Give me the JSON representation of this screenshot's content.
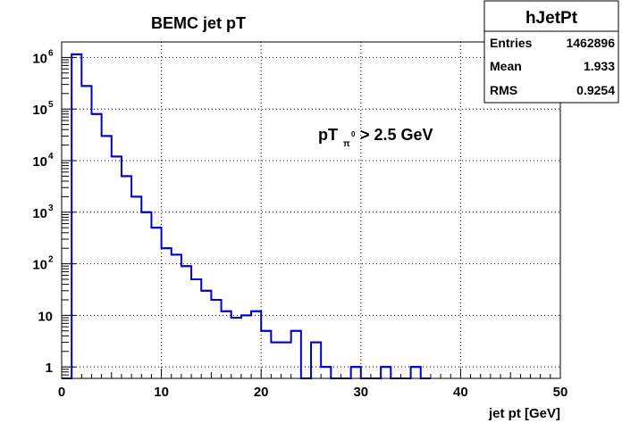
{
  "chart_data": {
    "type": "histogram",
    "title": "BEMC jet pT",
    "annotation": {
      "main": "pT",
      "subscript": "π",
      "superscript": "0",
      "rest": "> 2.5 GeV"
    },
    "xlabel": "jet pt [GeV]",
    "ylabel": "",
    "xlim": [
      0,
      50
    ],
    "ylim": [
      0.6,
      2000000
    ],
    "yscale": "log",
    "grid": true,
    "x_ticks": [
      0,
      10,
      20,
      30,
      40,
      50
    ],
    "x_tick_labels": [
      "0",
      "10",
      "20",
      "30",
      "40",
      "50"
    ],
    "y_ticks": [
      1,
      10,
      100,
      1000,
      10000,
      100000,
      1000000
    ],
    "y_tick_labels": [
      {
        "base": "1",
        "exp": ""
      },
      {
        "base": "10",
        "exp": ""
      },
      {
        "base": "10",
        "exp": "2"
      },
      {
        "base": "10",
        "exp": "3"
      },
      {
        "base": "10",
        "exp": "4"
      },
      {
        "base": "10",
        "exp": "5"
      },
      {
        "base": "10",
        "exp": "6"
      }
    ],
    "line_color": "#0000cc",
    "bin_width": 1,
    "bins": [
      {
        "x": 0,
        "y": 0
      },
      {
        "x": 1,
        "y": 1150000
      },
      {
        "x": 2,
        "y": 280000
      },
      {
        "x": 3,
        "y": 80000
      },
      {
        "x": 4,
        "y": 30000
      },
      {
        "x": 5,
        "y": 12000
      },
      {
        "x": 6,
        "y": 5000
      },
      {
        "x": 7,
        "y": 2000
      },
      {
        "x": 8,
        "y": 1000
      },
      {
        "x": 9,
        "y": 500
      },
      {
        "x": 10,
        "y": 200
      },
      {
        "x": 11,
        "y": 150
      },
      {
        "x": 12,
        "y": 90
      },
      {
        "x": 13,
        "y": 50
      },
      {
        "x": 14,
        "y": 30
      },
      {
        "x": 15,
        "y": 20
      },
      {
        "x": 16,
        "y": 12
      },
      {
        "x": 17,
        "y": 9
      },
      {
        "x": 18,
        "y": 10
      },
      {
        "x": 19,
        "y": 12
      },
      {
        "x": 20,
        "y": 5
      },
      {
        "x": 21,
        "y": 3
      },
      {
        "x": 22,
        "y": 3
      },
      {
        "x": 23,
        "y": 5
      },
      {
        "x": 24,
        "y": 0
      },
      {
        "x": 25,
        "y": 3
      },
      {
        "x": 26,
        "y": 1
      },
      {
        "x": 27,
        "y": 0
      },
      {
        "x": 28,
        "y": 0
      },
      {
        "x": 29,
        "y": 1
      },
      {
        "x": 30,
        "y": 0
      },
      {
        "x": 31,
        "y": 0
      },
      {
        "x": 32,
        "y": 1
      },
      {
        "x": 33,
        "y": 0
      },
      {
        "x": 34,
        "y": 0
      },
      {
        "x": 35,
        "y": 1
      },
      {
        "x": 36,
        "y": 0
      }
    ]
  },
  "stats_box": {
    "name": "hJetPt",
    "rows": [
      {
        "label": "Entries",
        "value": "1462896"
      },
      {
        "label": "Mean",
        "value": "1.933"
      },
      {
        "label": "RMS",
        "value": "0.9254"
      }
    ]
  }
}
